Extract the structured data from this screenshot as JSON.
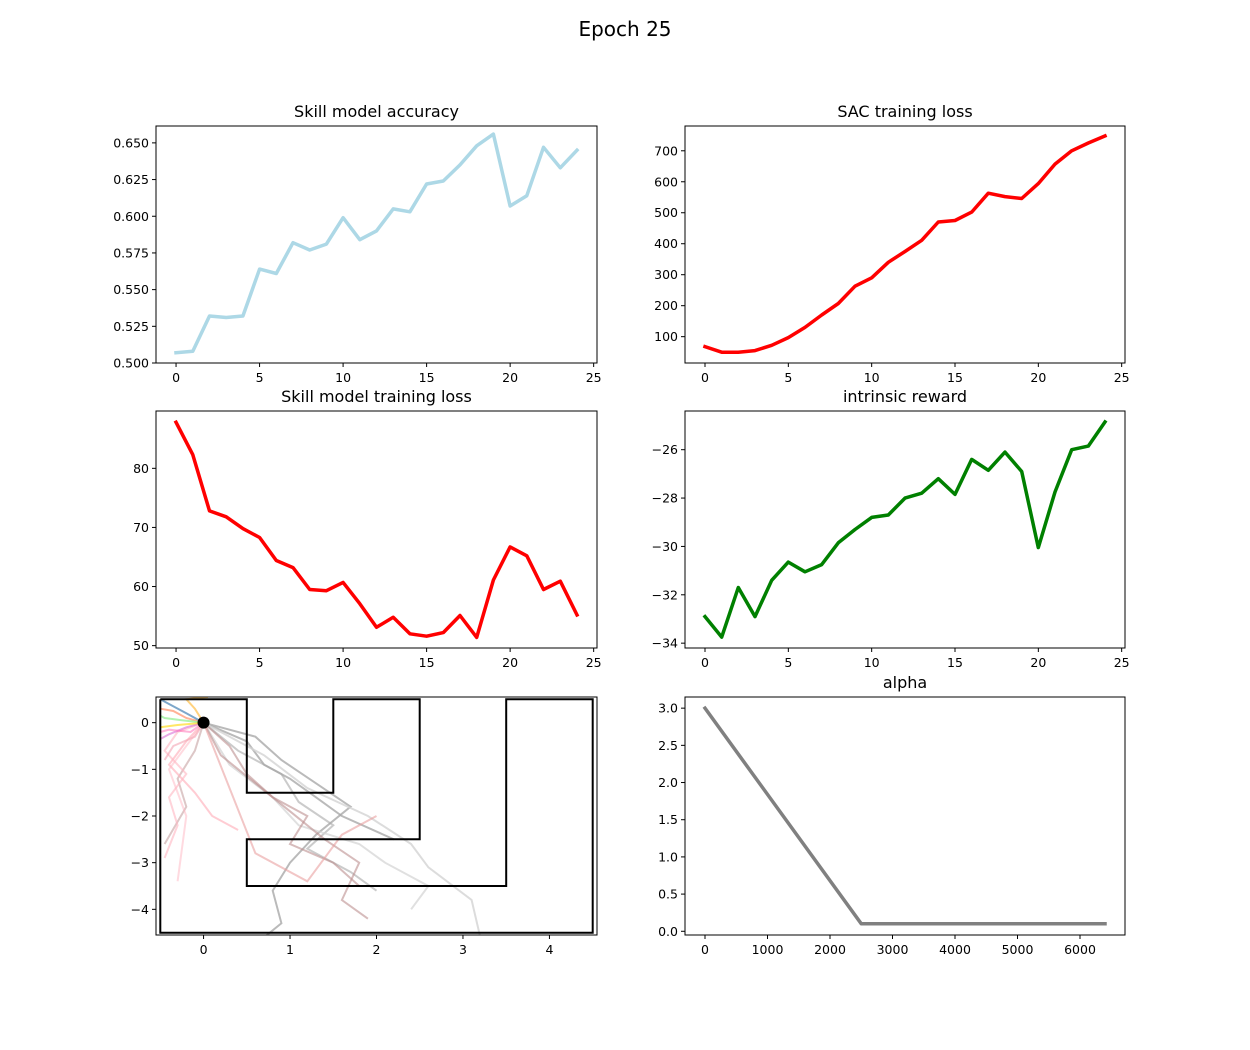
{
  "figure": {
    "suptitle": "Epoch 25"
  },
  "chart_data": [
    {
      "type": "line",
      "title": "Skill model accuracy",
      "xlabel": "",
      "ylabel": "",
      "color": "#add8e6",
      "x": [
        0,
        1,
        2,
        3,
        4,
        5,
        6,
        7,
        8,
        9,
        10,
        11,
        12,
        13,
        14,
        15,
        16,
        17,
        18,
        19,
        20,
        21,
        22,
        23,
        24
      ],
      "values": [
        0.507,
        0.508,
        0.532,
        0.531,
        0.532,
        0.564,
        0.561,
        0.582,
        0.577,
        0.581,
        0.599,
        0.584,
        0.59,
        0.605,
        0.603,
        0.622,
        0.624,
        0.635,
        0.648,
        0.656,
        0.607,
        0.614,
        0.647,
        0.633,
        0.645
      ],
      "xlim": [
        -1.2,
        25.2
      ],
      "ylim": [
        0.5,
        0.6615
      ],
      "xticks": [
        0,
        5,
        10,
        15,
        20,
        25
      ],
      "yticks": [
        0.5,
        0.525,
        0.55,
        0.575,
        0.6,
        0.625,
        0.65
      ],
      "yticklabels": [
        "0.500",
        "0.525",
        "0.550",
        "0.575",
        "0.600",
        "0.625",
        "0.650"
      ]
    },
    {
      "type": "line",
      "title": "SAC training loss",
      "xlabel": "",
      "ylabel": "",
      "color": "#ff0000",
      "x": [
        0,
        1,
        2,
        3,
        4,
        5,
        6,
        7,
        8,
        9,
        10,
        11,
        12,
        13,
        14,
        15,
        16,
        17,
        18,
        19,
        20,
        21,
        22,
        23,
        24
      ],
      "values": [
        68,
        50,
        50,
        55,
        72,
        97,
        130,
        170,
        207,
        263,
        290,
        340,
        375,
        411,
        470,
        475,
        502,
        563,
        552,
        546,
        594,
        657,
        700,
        725,
        748
      ],
      "xlim": [
        -1.2,
        25.2
      ],
      "ylim": [
        15,
        780
      ],
      "xticks": [
        0,
        5,
        10,
        15,
        20,
        25
      ],
      "yticks": [
        100,
        200,
        300,
        400,
        500,
        600,
        700
      ],
      "yticklabels": [
        "100",
        "200",
        "300",
        "400",
        "500",
        "600",
        "700"
      ]
    },
    {
      "type": "line",
      "title": "Skill model training loss",
      "xlabel": "",
      "ylabel": "",
      "color": "#ff0000",
      "x": [
        0,
        1,
        2,
        3,
        4,
        5,
        6,
        7,
        8,
        9,
        10,
        11,
        12,
        13,
        14,
        15,
        16,
        17,
        18,
        19,
        20,
        21,
        22,
        23,
        24
      ],
      "values": [
        87.8,
        82.3,
        72.8,
        71.8,
        69.8,
        68.3,
        64.4,
        63.2,
        59.5,
        59.3,
        60.7,
        57.1,
        53.1,
        54.8,
        52.0,
        51.6,
        52.2,
        55.1,
        51.4,
        61.1,
        66.7,
        65.2,
        59.5,
        60.9,
        55.2
      ],
      "xlim": [
        -1.2,
        25.2
      ],
      "ylim": [
        49.6,
        89.7
      ],
      "xticks": [
        0,
        5,
        10,
        15,
        20,
        25
      ],
      "yticks": [
        50,
        60,
        70,
        80
      ],
      "yticklabels": [
        "50",
        "60",
        "70",
        "80"
      ]
    },
    {
      "type": "line",
      "title": "intrinsic reward",
      "xlabel": "",
      "ylabel": "",
      "color": "#008000",
      "x": [
        0,
        1,
        2,
        3,
        4,
        5,
        6,
        7,
        8,
        9,
        10,
        11,
        12,
        13,
        14,
        15,
        16,
        17,
        18,
        19,
        20,
        21,
        22,
        23,
        24
      ],
      "values": [
        -32.9,
        -33.75,
        -31.7,
        -32.9,
        -31.4,
        -30.65,
        -31.05,
        -30.75,
        -29.85,
        -29.3,
        -28.8,
        -28.7,
        -28.0,
        -27.8,
        -27.2,
        -27.85,
        -26.4,
        -26.85,
        -26.1,
        -26.9,
        -30.05,
        -27.75,
        -26.0,
        -25.85,
        -24.85
      ],
      "xlim": [
        -1.2,
        25.2
      ],
      "ylim": [
        -34.2,
        -24.4
      ],
      "xticks": [
        0,
        5,
        10,
        15,
        20,
        25
      ],
      "yticks": [
        -34,
        -32,
        -30,
        -28,
        -26
      ],
      "yticklabels": [
        "−34",
        "−32",
        "−30",
        "−28",
        "−26"
      ]
    },
    {
      "type": "line",
      "title": "",
      "xlabel": "",
      "ylabel": "",
      "subtype": "trajectory-map",
      "xlim": [
        -0.55,
        4.55
      ],
      "ylim": [
        -4.55,
        0.55
      ],
      "xticks": [
        0,
        1,
        2,
        3,
        4
      ],
      "yticks": [
        -4,
        -3,
        -2,
        -1,
        0
      ],
      "yticklabels": [
        "−4",
        "−3",
        "−2",
        "−1",
        "0"
      ],
      "start_point": [
        0,
        0
      ],
      "maze_walls": [
        [
          [
            -0.5,
            0.5
          ],
          [
            0.5,
            0.5
          ],
          [
            0.5,
            -1.5
          ],
          [
            1.5,
            -1.5
          ],
          [
            1.5,
            0.5
          ],
          [
            2.5,
            0.5
          ],
          [
            2.5,
            -2.5
          ],
          [
            0.5,
            -2.5
          ],
          [
            0.5,
            -3.5
          ],
          [
            3.5,
            -3.5
          ],
          [
            3.5,
            0.5
          ],
          [
            4.5,
            0.5
          ],
          [
            4.5,
            -4.5
          ],
          [
            -0.5,
            -4.5
          ],
          [
            -0.5,
            0.5
          ]
        ]
      ],
      "trajectories": [
        {
          "color": "#a9a9a9",
          "alpha": 0.8,
          "points": [
            [
              0,
              0
            ],
            [
              0.5,
              -0.4
            ],
            [
              0.7,
              -0.9
            ],
            [
              1.0,
              -1.2
            ],
            [
              1.3,
              -1.6
            ],
            [
              1.6,
              -2.0
            ],
            [
              2.2,
              -2.5
            ]
          ]
        },
        {
          "color": "#a9a9a9",
          "alpha": 0.6,
          "points": [
            [
              0,
              0
            ],
            [
              0.4,
              -0.6
            ],
            [
              0.9,
              -1.1
            ],
            [
              1.1,
              -1.7
            ],
            [
              1.5,
              -2.2
            ],
            [
              1.2,
              -2.7
            ],
            [
              1.7,
              -3.2
            ],
            [
              2.0,
              -3.6
            ]
          ]
        },
        {
          "color": "#a9a9a9",
          "alpha": 0.8,
          "points": [
            [
              0,
              0
            ],
            [
              0.6,
              -0.3
            ],
            [
              0.9,
              -0.8
            ],
            [
              1.3,
              -1.3
            ],
            [
              1.7,
              -1.8
            ],
            [
              1.3,
              -2.4
            ],
            [
              1.0,
              -3.0
            ],
            [
              0.8,
              -3.6
            ],
            [
              0.9,
              -4.3
            ],
            [
              0.7,
              -4.6
            ]
          ]
        },
        {
          "color": "#d3d3d3",
          "alpha": 0.8,
          "points": [
            [
              0,
              0
            ],
            [
              0.7,
              -0.7
            ],
            [
              1.2,
              -1.4
            ],
            [
              1.9,
              -2.0
            ],
            [
              2.4,
              -2.6
            ],
            [
              2.6,
              -3.1
            ],
            [
              3.1,
              -3.8
            ],
            [
              3.2,
              -4.6
            ]
          ]
        },
        {
          "color": "#d3d3d3",
          "alpha": 0.7,
          "points": [
            [
              0,
              0
            ],
            [
              0.3,
              -0.9
            ],
            [
              0.8,
              -1.6
            ],
            [
              1.1,
              -2.2
            ],
            [
              1.8,
              -2.6
            ],
            [
              2.1,
              -3.0
            ],
            [
              2.6,
              -3.5
            ],
            [
              2.4,
              -4.0
            ]
          ]
        },
        {
          "color": "#bc8f8f",
          "alpha": 0.6,
          "points": [
            [
              0,
              0
            ],
            [
              0.3,
              -0.5
            ],
            [
              0.5,
              -1.1
            ],
            [
              0.8,
              -1.6
            ],
            [
              1.2,
              -2.0
            ],
            [
              1.0,
              -2.6
            ],
            [
              1.5,
              -3.0
            ],
            [
              1.8,
              -3.5
            ]
          ]
        },
        {
          "color": "#bc8f8f",
          "alpha": 0.6,
          "points": [
            [
              0,
              0
            ],
            [
              0.2,
              -0.7
            ],
            [
              0.6,
              -1.3
            ],
            [
              1.0,
              -1.9
            ],
            [
              1.4,
              -2.5
            ],
            [
              1.8,
              -3.0
            ],
            [
              1.6,
              -3.8
            ],
            [
              1.9,
              -4.2
            ]
          ]
        },
        {
          "color": "#bc8f8f",
          "alpha": 0.5,
          "points": [
            [
              0,
              0
            ],
            [
              -0.1,
              -0.6
            ],
            [
              -0.3,
              -1.2
            ],
            [
              -0.2,
              -1.8
            ],
            [
              -0.45,
              -2.6
            ]
          ]
        },
        {
          "color": "#ffb6c1",
          "alpha": 0.7,
          "points": [
            [
              0,
              0
            ],
            [
              -0.2,
              -0.4
            ],
            [
              -0.4,
              -0.9
            ],
            [
              -0.1,
              -1.5
            ],
            [
              0.1,
              -2.0
            ],
            [
              0.4,
              -2.3
            ]
          ]
        },
        {
          "color": "#ffb6c1",
          "alpha": 0.6,
          "points": [
            [
              0,
              0
            ],
            [
              -0.3,
              -0.2
            ],
            [
              -0.45,
              -0.6
            ],
            [
              -0.2,
              -1.1
            ],
            [
              -0.4,
              -1.6
            ],
            [
              -0.3,
              -2.2
            ],
            [
              -0.45,
              -2.9
            ]
          ]
        },
        {
          "color": "#ffb6c1",
          "alpha": 0.5,
          "points": [
            [
              0,
              0
            ],
            [
              -0.4,
              -1.0
            ],
            [
              -0.2,
              -2.0
            ],
            [
              -0.3,
              -3.4
            ]
          ]
        },
        {
          "color": "#f4a3b3",
          "alpha": 0.6,
          "points": [
            [
              0,
              0
            ],
            [
              -0.1,
              -0.3
            ],
            [
              -0.35,
              -0.5
            ],
            [
              -0.45,
              -0.8
            ]
          ]
        },
        {
          "color": "#e9a0a0",
          "alpha": 0.6,
          "points": [
            [
              0,
              0
            ],
            [
              0.6,
              -2.8
            ],
            [
              1.2,
              -3.4
            ],
            [
              1.6,
              -2.4
            ],
            [
              2.0,
              -2.0
            ]
          ]
        },
        {
          "color": "#da70d6",
          "alpha": 0.6,
          "points": [
            [
              0,
              0
            ],
            [
              -0.2,
              -0.1
            ],
            [
              -0.4,
              -0.25
            ],
            [
              -0.5,
              -0.35
            ]
          ]
        },
        {
          "color": "#ff7f50",
          "alpha": 0.6,
          "points": [
            [
              0,
              0
            ],
            [
              -0.2,
              0.1
            ],
            [
              -0.35,
              0.25
            ],
            [
              -0.5,
              0.3
            ]
          ]
        },
        {
          "color": "#ffa500",
          "alpha": 0.5,
          "points": [
            [
              0,
              0
            ],
            [
              -0.1,
              0.3
            ],
            [
              -0.2,
              0.5
            ],
            [
              0.05,
              0.55
            ]
          ]
        },
        {
          "color": "#90ee90",
          "alpha": 0.7,
          "points": [
            [
              0,
              0
            ],
            [
              -0.25,
              0.05
            ],
            [
              -0.45,
              0.1
            ],
            [
              -0.5,
              0.15
            ]
          ]
        },
        {
          "color": "#4682b4",
          "alpha": 0.7,
          "points": [
            [
              0,
              0
            ],
            [
              -0.2,
              0.2
            ],
            [
              -0.4,
              0.4
            ],
            [
              -0.5,
              0.5
            ]
          ]
        },
        {
          "color": "#ffd700",
          "alpha": 0.6,
          "points": [
            [
              0,
              0
            ],
            [
              -0.3,
              -0.05
            ],
            [
              -0.5,
              -0.1
            ]
          ]
        },
        {
          "color": "#ff69b4",
          "alpha": 0.5,
          "points": [
            [
              0,
              0
            ],
            [
              -0.15,
              -0.2
            ],
            [
              -0.4,
              -0.15
            ],
            [
              -0.5,
              -0.2
            ]
          ]
        }
      ]
    },
    {
      "type": "line",
      "title": "alpha",
      "xlabel": "",
      "ylabel": "",
      "color": "#808080",
      "x": [
        0,
        2500,
        6400
      ],
      "values": [
        3.0,
        0.1,
        0.1
      ],
      "xlim": [
        -320,
        6720
      ],
      "ylim": [
        -0.05,
        3.15
      ],
      "xticks": [
        0,
        1000,
        2000,
        3000,
        4000,
        5000,
        6000
      ],
      "yticks": [
        0.0,
        0.5,
        1.0,
        1.5,
        2.0,
        2.5,
        3.0
      ],
      "yticklabels": [
        "0.0",
        "0.5",
        "1.0",
        "1.5",
        "2.0",
        "2.5",
        "3.0"
      ]
    }
  ]
}
